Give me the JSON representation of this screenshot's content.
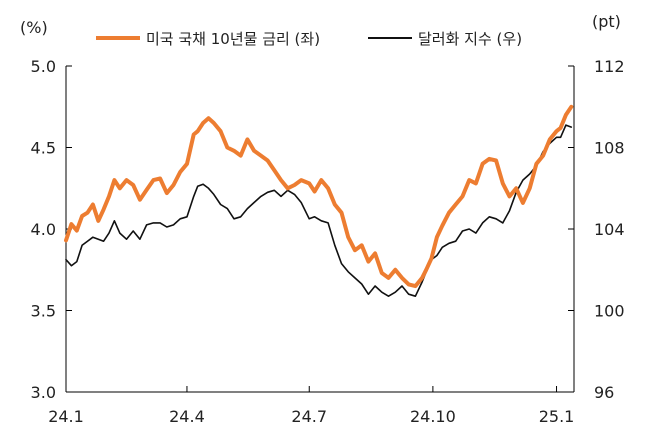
{
  "chart_data": {
    "type": "line",
    "left_axis": {
      "unit": "(%)",
      "ylim": [
        3.0,
        5.0
      ],
      "ticks": [
        "5.0",
        "4.5",
        "4.0",
        "3.5",
        "3.0"
      ],
      "tick_values": [
        5.0,
        4.5,
        4.0,
        3.5,
        3.0
      ]
    },
    "right_axis": {
      "unit": "(pt)",
      "ylim": [
        96,
        112
      ],
      "ticks": [
        "112",
        "108",
        "104",
        "100",
        "96"
      ],
      "tick_values": [
        112,
        108,
        104,
        100,
        96
      ]
    },
    "x_axis": {
      "ticks": [
        "24.1",
        "24.4",
        "24.7",
        "24.10",
        "25.1"
      ],
      "tick_positions": [
        0,
        90,
        181,
        273,
        365
      ],
      "range": [
        0,
        378
      ]
    },
    "legend_position": "top",
    "grid": false,
    "series": [
      {
        "name": "미국 국채 10년물 금리 (좌)",
        "axis": "left",
        "color": "#ED7D31",
        "x": [
          0,
          4,
          8,
          12,
          16,
          20,
          24,
          28,
          32,
          36,
          40,
          45,
          50,
          55,
          60,
          65,
          70,
          75,
          80,
          85,
          90,
          95,
          98,
          102,
          106,
          110,
          115,
          120,
          125,
          130,
          135,
          140,
          145,
          150,
          155,
          160,
          165,
          170,
          175,
          181,
          185,
          190,
          195,
          200,
          205,
          210,
          215,
          220,
          225,
          230,
          235,
          240,
          245,
          250,
          255,
          260,
          265,
          268,
          272,
          276,
          280,
          285,
          290,
          295,
          300,
          305,
          310,
          315,
          320,
          325,
          330,
          335,
          340,
          345,
          350,
          355,
          360,
          365,
          368,
          372,
          376
        ],
        "values": [
          3.93,
          4.03,
          3.99,
          4.08,
          4.1,
          4.15,
          4.05,
          4.12,
          4.2,
          4.3,
          4.25,
          4.3,
          4.27,
          4.18,
          4.24,
          4.3,
          4.31,
          4.22,
          4.27,
          4.35,
          4.4,
          4.58,
          4.6,
          4.65,
          4.68,
          4.65,
          4.6,
          4.5,
          4.48,
          4.45,
          4.55,
          4.48,
          4.45,
          4.42,
          4.36,
          4.3,
          4.25,
          4.27,
          4.3,
          4.28,
          4.23,
          4.3,
          4.25,
          4.15,
          4.1,
          3.95,
          3.87,
          3.9,
          3.8,
          3.85,
          3.73,
          3.7,
          3.75,
          3.7,
          3.66,
          3.65,
          3.7,
          3.75,
          3.82,
          3.95,
          4.02,
          4.1,
          4.15,
          4.2,
          4.3,
          4.28,
          4.4,
          4.43,
          4.42,
          4.28,
          4.2,
          4.25,
          4.16,
          4.25,
          4.4,
          4.45,
          4.55,
          4.6,
          4.62,
          4.7,
          4.75
        ]
      },
      {
        "name": "달러화 지수 (우)",
        "axis": "right",
        "color": "#111111",
        "x": [
          0,
          4,
          8,
          12,
          16,
          20,
          24,
          28,
          32,
          36,
          40,
          45,
          50,
          55,
          60,
          65,
          70,
          75,
          80,
          85,
          90,
          95,
          98,
          102,
          106,
          110,
          115,
          120,
          125,
          130,
          135,
          140,
          145,
          150,
          155,
          160,
          165,
          170,
          175,
          181,
          185,
          190,
          195,
          200,
          205,
          210,
          215,
          220,
          225,
          230,
          235,
          240,
          245,
          250,
          255,
          260,
          265,
          268,
          272,
          276,
          280,
          285,
          290,
          295,
          300,
          305,
          310,
          315,
          320,
          325,
          330,
          335,
          340,
          345,
          350,
          355,
          360,
          365,
          368,
          372,
          376
        ],
        "values": [
          102.5,
          102.2,
          102.4,
          103.2,
          103.4,
          103.6,
          103.5,
          103.4,
          103.8,
          104.4,
          103.8,
          103.5,
          103.9,
          103.5,
          104.2,
          104.3,
          104.3,
          104.1,
          104.2,
          104.5,
          104.6,
          105.6,
          106.1,
          106.2,
          106.0,
          105.7,
          105.2,
          105.0,
          104.5,
          104.6,
          105.0,
          105.3,
          105.6,
          105.8,
          105.9,
          105.6,
          105.9,
          105.7,
          105.3,
          104.5,
          104.6,
          104.4,
          104.3,
          103.2,
          102.3,
          101.9,
          101.6,
          101.3,
          100.8,
          101.2,
          100.9,
          100.7,
          100.9,
          101.2,
          100.8,
          100.7,
          101.4,
          101.9,
          102.5,
          102.7,
          103.1,
          103.3,
          103.4,
          103.9,
          104.0,
          103.8,
          104.3,
          104.6,
          104.5,
          104.3,
          104.9,
          105.8,
          106.4,
          106.7,
          107.1,
          107.8,
          108.2,
          108.5,
          108.5,
          109.1,
          109.0
        ]
      }
    ]
  }
}
